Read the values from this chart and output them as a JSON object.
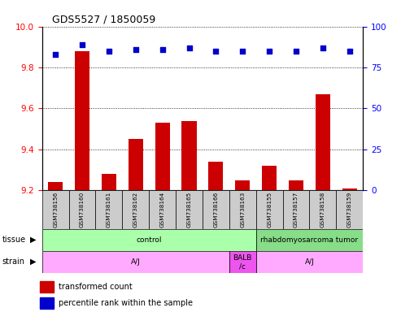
{
  "title": "GDS5527 / 1850059",
  "samples": [
    "GSM738156",
    "GSM738160",
    "GSM738161",
    "GSM738162",
    "GSM738164",
    "GSM738165",
    "GSM738166",
    "GSM738163",
    "GSM738155",
    "GSM738157",
    "GSM738158",
    "GSM738159"
  ],
  "bar_values": [
    9.24,
    9.88,
    9.28,
    9.45,
    9.53,
    9.54,
    9.34,
    9.25,
    9.32,
    9.25,
    9.67,
    9.21
  ],
  "scatter_values": [
    83,
    89,
    85,
    86,
    86,
    87,
    85,
    85,
    85,
    85,
    87,
    85
  ],
  "bar_color": "#cc0000",
  "scatter_color": "#0000cc",
  "bar_bottom": 9.2,
  "ylim_left": [
    9.2,
    10.0
  ],
  "ylim_right": [
    0,
    100
  ],
  "yticks_left": [
    9.2,
    9.4,
    9.6,
    9.8,
    10.0
  ],
  "yticks_right": [
    0,
    25,
    50,
    75,
    100
  ],
  "tissue_labels": [
    {
      "text": "control",
      "start": 0,
      "end": 8,
      "color": "#aaffaa"
    },
    {
      "text": "rhabdomyosarcoma tumor",
      "start": 8,
      "end": 12,
      "color": "#88dd88"
    }
  ],
  "strain_labels": [
    {
      "text": "A/J",
      "start": 0,
      "end": 7,
      "color": "#ffaaff"
    },
    {
      "text": "BALB\n/c",
      "start": 7,
      "end": 8,
      "color": "#ee55ee"
    },
    {
      "text": "A/J",
      "start": 8,
      "end": 12,
      "color": "#ffaaff"
    }
  ],
  "row_label_tissue": "tissue",
  "row_label_strain": "strain",
  "legend_bar": "transformed count",
  "legend_scatter": "percentile rank within the sample",
  "background_color": "#ffffff",
  "plot_bg": "#ffffff",
  "grid_color": "#000000",
  "label_box_color": "#cccccc"
}
